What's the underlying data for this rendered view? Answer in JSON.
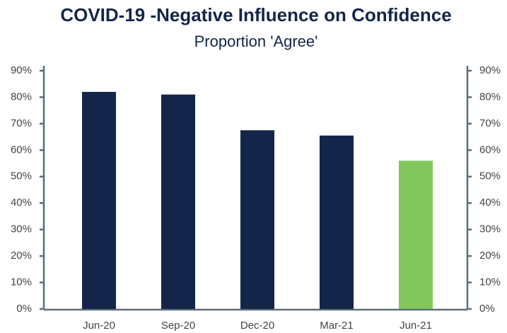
{
  "chart_data": {
    "type": "bar",
    "title": "COVID-19 -Negative Influence on Confidence",
    "subtitle": "Proportion 'Agree'",
    "categories": [
      "Jun-20",
      "Sep-20",
      "Dec-20",
      "Mar-21",
      "Jun-21"
    ],
    "values": [
      82,
      81,
      67.5,
      65.5,
      56
    ],
    "colors": [
      "#13264a",
      "#13264a",
      "#13264a",
      "#13264a",
      "#82c65c"
    ],
    "ylim": [
      0,
      90
    ],
    "yticks": [
      {
        "value": 0,
        "label": "0%"
      },
      {
        "value": 10,
        "label": "10%"
      },
      {
        "value": 20,
        "label": "20%"
      },
      {
        "value": 30,
        "label": "30%"
      },
      {
        "value": 40,
        "label": "40%"
      },
      {
        "value": 50,
        "label": "50%"
      },
      {
        "value": 60,
        "label": "60%"
      },
      {
        "value": 70,
        "label": "70%"
      },
      {
        "value": 80,
        "label": "80%"
      },
      {
        "value": 90,
        "label": "90%"
      }
    ],
    "y2lim": [
      0,
      90
    ],
    "y2ticks": [
      {
        "value": 0,
        "label": "0%"
      },
      {
        "value": 10,
        "label": "10%"
      },
      {
        "value": 20,
        "label": "20%"
      },
      {
        "value": 30,
        "label": "30%"
      },
      {
        "value": 40,
        "label": "40%"
      },
      {
        "value": 50,
        "label": "50%"
      },
      {
        "value": 60,
        "label": "60%"
      },
      {
        "value": 70,
        "label": "70%"
      },
      {
        "value": 80,
        "label": "80%"
      },
      {
        "value": 90,
        "label": "90%"
      }
    ]
  }
}
